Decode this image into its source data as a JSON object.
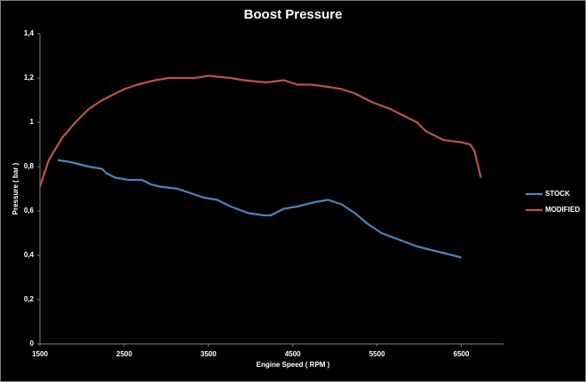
{
  "chart_data": {
    "type": "line",
    "title": "Boost Pressure",
    "x_label": "Engine Speed ( RPM )",
    "y_label": "Pressure ( bar )",
    "xlim": [
      1500,
      7000
    ],
    "xticks": [
      1500,
      2500,
      3500,
      4500,
      5500,
      6500
    ],
    "ylim": [
      0,
      1.4
    ],
    "yticks": [
      0,
      {
        "value": 0.2,
        "label": "0,2"
      },
      {
        "value": 0.4,
        "label": "0,4"
      },
      {
        "value": 0.6,
        "label": "0,6"
      },
      {
        "value": 0.8,
        "label": "0,8"
      },
      1,
      {
        "value": 1.2,
        "label": "1,2"
      },
      {
        "value": 1.4,
        "label": "1,4"
      }
    ],
    "grid": false,
    "legend": "right",
    "series": [
      {
        "name": "STOCK",
        "color": "#4f81bd",
        "x": [
          1711,
          1868,
          2079,
          2237,
          2289,
          2395,
          2553,
          2711,
          2816,
          2921,
          3132,
          3289,
          3447,
          3605,
          3763,
          3974,
          4163,
          4237,
          4395,
          4553,
          4763,
          4921,
          5079,
          5237,
          5395,
          5553,
          5763,
          5974,
          6184,
          6289,
          6395,
          6500
        ],
        "values": [
          0.83,
          0.82,
          0.8,
          0.79,
          0.77,
          0.75,
          0.74,
          0.74,
          0.72,
          0.71,
          0.7,
          0.68,
          0.66,
          0.65,
          0.62,
          0.59,
          0.58,
          0.58,
          0.61,
          0.62,
          0.64,
          0.65,
          0.63,
          0.59,
          0.54,
          0.5,
          0.47,
          0.44,
          0.42,
          0.41,
          0.4,
          0.39
        ]
      },
      {
        "name": "MODIFIED",
        "color": "#c0504d",
        "x": [
          1500,
          1605,
          1763,
          1921,
          2079,
          2237,
          2342,
          2500,
          2658,
          2868,
          3026,
          3342,
          3500,
          3763,
          3921,
          4184,
          4395,
          4553,
          4711,
          4921,
          5079,
          5237,
          5447,
          5658,
          5763,
          5974,
          6079,
          6289,
          6500,
          6605,
          6658,
          6732
        ],
        "values": [
          0.71,
          0.83,
          0.93,
          1.0,
          1.06,
          1.1,
          1.12,
          1.15,
          1.17,
          1.19,
          1.2,
          1.2,
          1.21,
          1.2,
          1.19,
          1.18,
          1.19,
          1.17,
          1.17,
          1.16,
          1.15,
          1.13,
          1.09,
          1.06,
          1.04,
          1.0,
          0.96,
          0.92,
          0.91,
          0.9,
          0.87,
          0.75
        ]
      }
    ]
  }
}
